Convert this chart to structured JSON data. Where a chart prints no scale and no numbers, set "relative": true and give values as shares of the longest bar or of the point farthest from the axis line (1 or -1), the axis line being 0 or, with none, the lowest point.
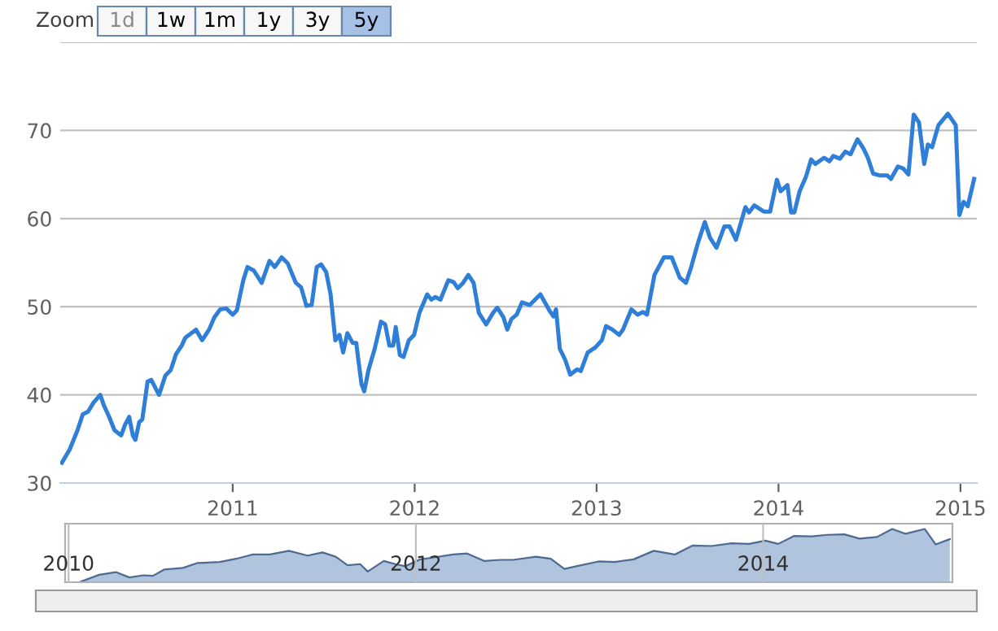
{
  "chart_data": [
    {
      "type": "line",
      "annotations": [
        "Zoom",
        "1d",
        "1w",
        "1m",
        "1y",
        "3y",
        "5y"
      ],
      "x": [
        2010.061,
        2010.104,
        2010.147,
        2010.176,
        2010.205,
        2010.234,
        2010.272,
        2010.292,
        2010.321,
        2010.35,
        2010.387,
        2010.408,
        2010.431,
        2010.451,
        2010.465,
        2010.486,
        2010.503,
        2010.532,
        2010.552,
        2010.595,
        2010.63,
        2010.659,
        2010.688,
        2010.72,
        2010.74,
        2010.798,
        2010.832,
        2010.87,
        2010.899,
        2010.931,
        2010.965,
        2011.0,
        2011.023,
        2011.058,
        2011.081,
        2011.116,
        2011.159,
        2011.202,
        2011.231,
        2011.269,
        2011.303,
        2011.347,
        2011.376,
        2011.405,
        2011.434,
        2011.462,
        2011.486,
        2011.514,
        2011.538,
        2011.564,
        2011.587,
        2011.607,
        2011.63,
        2011.659,
        2011.679,
        2011.694,
        2011.708,
        2011.723,
        2011.746,
        2011.78,
        2011.815,
        2011.838,
        2011.861,
        2011.882,
        2011.896,
        2011.919,
        2011.939,
        2011.968,
        2011.997,
        2012.026,
        2012.069,
        2012.092,
        2012.113,
        2012.142,
        2012.185,
        2012.214,
        2012.237,
        2012.266,
        2012.295,
        2012.324,
        2012.353,
        2012.393,
        2012.431,
        2012.454,
        2012.488,
        2012.509,
        2012.532,
        2012.561,
        2012.59,
        2012.633,
        2012.691,
        2012.74,
        2012.763,
        2012.777,
        2012.798,
        2012.827,
        2012.855,
        2012.893,
        2012.913,
        2012.951,
        2012.994,
        2013.029,
        2013.052,
        2013.087,
        2013.124,
        2013.145,
        2013.191,
        2013.225,
        2013.254,
        2013.277,
        2013.318,
        2013.37,
        2013.413,
        2013.457,
        2013.491,
        2013.52,
        2013.558,
        2013.595,
        2013.624,
        2013.659,
        2013.702,
        2013.731,
        2013.766,
        2013.818,
        2013.838,
        2013.867,
        2013.919,
        2013.954,
        2013.991,
        2014.012,
        2014.049,
        2014.069,
        2014.087,
        2014.116,
        2014.15,
        2014.179,
        2014.202,
        2014.251,
        2014.28,
        2014.301,
        2014.338,
        2014.367,
        2014.396,
        2014.434,
        2014.468,
        2014.491,
        2014.52,
        2014.555,
        2014.598,
        2014.618,
        2014.656,
        2014.685,
        2014.714,
        2014.743,
        2014.772,
        2014.801,
        2014.821,
        2014.844,
        2014.879,
        2014.931,
        2014.974,
        2014.994,
        2015.017,
        2015.04,
        2015.075
      ],
      "series": [
        {
          "color": "#2f7ed8",
          "values": [
            32.3,
            33.8,
            36,
            37.8,
            38.1,
            39.1,
            40,
            38.8,
            37.5,
            36,
            35.4,
            36.6,
            37.5,
            35.4,
            34.9,
            36.9,
            37.2,
            41.5,
            41.7,
            40,
            42.2,
            42.8,
            44.6,
            45.6,
            46.5,
            47.4,
            46.2,
            47.4,
            48.8,
            49.7,
            49.8,
            49.1,
            49.6,
            53,
            54.5,
            54.1,
            52.7,
            55.2,
            54.5,
            55.6,
            54.9,
            52.7,
            52.2,
            50.1,
            50.2,
            54.5,
            54.8,
            53.9,
            51.4,
            46.2,
            46.8,
            44.8,
            47,
            45.9,
            45.9,
            43.4,
            41.2,
            40.4,
            42.8,
            45.2,
            48.3,
            48,
            45.6,
            45.6,
            47.7,
            44.5,
            44.3,
            46.2,
            46.8,
            49.3,
            51.4,
            50.8,
            51.1,
            50.8,
            53,
            52.8,
            52.1,
            52.7,
            53.6,
            52.7,
            49.3,
            48,
            49.3,
            49.9,
            48.8,
            47.4,
            48.6,
            49.1,
            50.5,
            50.2,
            51.4,
            49.6,
            48.9,
            49.7,
            45.2,
            44,
            42.3,
            42.9,
            42.7,
            44.8,
            45.4,
            46.2,
            47.8,
            47.4,
            46.8,
            47.4,
            49.7,
            49.1,
            49.4,
            49.1,
            53.6,
            55.6,
            55.6,
            53.3,
            52.7,
            54.5,
            57.3,
            59.6,
            57.8,
            56.7,
            59.1,
            59.1,
            57.6,
            61.3,
            60.7,
            61.5,
            60.8,
            60.8,
            64.4,
            63.1,
            63.8,
            60.7,
            60.7,
            63.1,
            64.7,
            66.7,
            66.2,
            66.9,
            66.5,
            67.1,
            66.8,
            67.6,
            67.3,
            69,
            67.9,
            66.9,
            65.1,
            64.9,
            64.9,
            64.5,
            65.9,
            65.7,
            65,
            71.8,
            70.9,
            66.2,
            68.4,
            68.1,
            70.6,
            71.9,
            70.6,
            60.4,
            61.9,
            61.4,
            64.5
          ]
        }
      ],
      "xlim": [
        2010.052,
        2015.09
      ],
      "xticks": [
        2011,
        2012,
        2013,
        2014,
        2015
      ],
      "ylim": [
        30,
        80
      ],
      "yticks": [
        30,
        40,
        50,
        60,
        70,
        {
          "value": 80,
          "label": null
        }
      ],
      "grid": "y"
    },
    {
      "type": "area",
      "relative": true,
      "tick_labels": "x",
      "grid": "x",
      "xlim": [
        2009.98,
        2015.09
      ],
      "xticks": [
        2010,
        2012,
        2014
      ],
      "x": [
        2010.061,
        2010.176,
        2010.272,
        2010.35,
        2010.431,
        2010.486,
        2010.552,
        2010.659,
        2010.74,
        2010.87,
        2010.965,
        2011.058,
        2011.159,
        2011.269,
        2011.376,
        2011.462,
        2011.538,
        2011.607,
        2011.679,
        2011.723,
        2011.815,
        2011.882,
        2011.939,
        2012.026,
        2012.113,
        2012.214,
        2012.295,
        2012.393,
        2012.488,
        2012.561,
        2012.691,
        2012.777,
        2012.855,
        2012.951,
        2013.052,
        2013.145,
        2013.254,
        2013.37,
        2013.491,
        2013.595,
        2013.702,
        2013.818,
        2013.919,
        2014.012,
        2014.087,
        2014.179,
        2014.28,
        2014.367,
        2014.468,
        2014.555,
        2014.656,
        2014.743,
        2014.821,
        2014.931,
        2014.994,
        2015.075
      ],
      "series": [
        {
          "color": "#b0c4de",
          "values": [
            0,
            0.14,
            0.19,
            0.09,
            0.13,
            0.12,
            0.24,
            0.27,
            0.36,
            0.38,
            0.44,
            0.52,
            0.52,
            0.59,
            0.5,
            0.56,
            0.48,
            0.32,
            0.34,
            0.2,
            0.4,
            0.34,
            0.3,
            0.43,
            0.47,
            0.52,
            0.54,
            0.4,
            0.42,
            0.42,
            0.48,
            0.44,
            0.25,
            0.32,
            0.39,
            0.38,
            0.43,
            0.59,
            0.52,
            0.69,
            0.68,
            0.73,
            0.72,
            0.78,
            0.72,
            0.87,
            0.86,
            0.89,
            0.9,
            0.82,
            0.85,
            1.0,
            0.91,
            1,
            0.71,
            0.81
          ]
        }
      ]
    }
  ]
}
